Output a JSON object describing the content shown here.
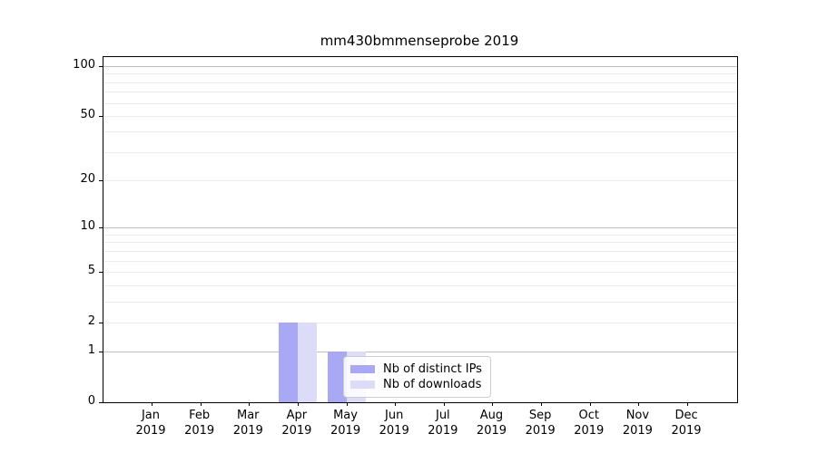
{
  "title": "mm430bmmenseprobe 2019",
  "colors": {
    "ips": "#a8a8f5",
    "downloads": "#dcdcf8",
    "grid_minor": "#ebebeb",
    "grid_major": "#c0c0c0",
    "axis": "#000000",
    "legend_border": "#cccccc",
    "background": "#ffffff"
  },
  "legend": {
    "items": [
      {
        "label": "Nb of distinct IPs",
        "series_key": "ips"
      },
      {
        "label": "Nb of downloads",
        "series_key": "downloads"
      }
    ]
  },
  "chart_data": {
    "type": "bar",
    "title": "mm430bmmenseprobe 2019",
    "categories": [
      "Jan 2019",
      "Feb 2019",
      "Mar 2019",
      "Apr 2019",
      "May 2019",
      "Jun 2019",
      "Jul 2019",
      "Aug 2019",
      "Sep 2019",
      "Oct 2019",
      "Nov 2019",
      "Dec 2019"
    ],
    "x_months": [
      "Jan",
      "Feb",
      "Mar",
      "Apr",
      "May",
      "Jun",
      "Jul",
      "Aug",
      "Sep",
      "Oct",
      "Nov",
      "Dec"
    ],
    "x_year": "2019",
    "series": [
      {
        "name": "Nb of distinct IPs",
        "color_key": "ips",
        "values": [
          0,
          0,
          0,
          2,
          1,
          0,
          0,
          0,
          0,
          0,
          0,
          0
        ]
      },
      {
        "name": "Nb of downloads",
        "color_key": "downloads",
        "values": [
          0,
          0,
          0,
          2,
          1,
          0,
          0,
          0,
          0,
          0,
          0,
          0
        ]
      }
    ],
    "y_scale": "log1p",
    "y_ticks": [
      0,
      1,
      2,
      5,
      10,
      20,
      50,
      100
    ],
    "y_minor_gridlines": [
      2,
      3,
      4,
      5,
      6,
      7,
      8,
      9,
      20,
      30,
      40,
      50,
      60,
      70,
      80,
      90
    ],
    "y_major_gridlines": [
      1,
      10,
      100
    ],
    "ylim": [
      0,
      113
    ],
    "xlabel": "",
    "ylabel": "",
    "grid": "horizontal",
    "legend_position": "lower-center"
  }
}
